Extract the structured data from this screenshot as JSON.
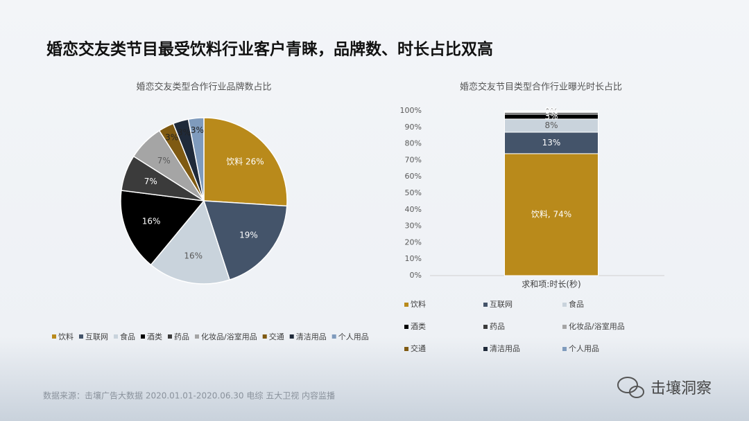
{
  "header": {
    "title": "婚恋交友类节目最受饮料行业客户青睐，品牌数、时长占比双高"
  },
  "footer": {
    "source": "数据来源：击壤广告大数据 2020.01.01-2020.06.30 电综 五大卫视 内容监播",
    "brand": "击壤洞察"
  },
  "chart_data": [
    {
      "type": "pie",
      "title": "婚恋交友类型合作行业品牌数占比",
      "categories": [
        "饮料",
        "互联网",
        "食品",
        "酒类",
        "药品",
        "化妆品/浴室用品",
        "交通",
        "清洁用品",
        "个人用品"
      ],
      "values": [
        26,
        19,
        16,
        16,
        7,
        7,
        3,
        3,
        3
      ],
      "value_labels": [
        "饮料 26%",
        "19%",
        "16%",
        "16%",
        "7%",
        "7%",
        "3%",
        "3%",
        "3%"
      ],
      "colors": [
        "#b98a1b",
        "#44546a",
        "#c9d3dc",
        "#000000",
        "#3b3b3b",
        "#a5a5a5",
        "#7f5a12",
        "#1f2a3a",
        "#7f9bbd"
      ],
      "legend": "bottom"
    },
    {
      "type": "stacked_bar",
      "title": "婚恋交友节目类型合作行业曝光时长占比",
      "categories": [
        "求和项:时长(秒)"
      ],
      "series": [
        {
          "name": "饮料",
          "color": "#b98a1b",
          "values": [
            74
          ],
          "value_labels": [
            "饮料, 74%"
          ]
        },
        {
          "name": "互联网",
          "color": "#44546a",
          "values": [
            13
          ],
          "value_labels": [
            "13%"
          ]
        },
        {
          "name": "食品",
          "color": "#c9d3dc",
          "values": [
            8
          ],
          "value_labels": [
            "8%"
          ]
        },
        {
          "name": "酒类",
          "color": "#000000",
          "values": [
            3
          ],
          "value_labels": [
            "3%"
          ]
        },
        {
          "name": "药品",
          "color": "#3b3b3b",
          "values": [
            1
          ],
          "value_labels": [
            "1%"
          ]
        },
        {
          "name": "化妆品/浴室用品",
          "color": "#a5a5a5",
          "values": [
            0.4
          ],
          "value_labels": [
            "0%"
          ]
        },
        {
          "name": "交通",
          "color": "#7f5a12",
          "values": [
            0.3
          ],
          "value_labels": [
            "0%"
          ]
        },
        {
          "name": "清洁用品",
          "color": "#1f2a3a",
          "values": [
            0.2
          ],
          "value_labels": [
            "0%"
          ]
        },
        {
          "name": "个人用品",
          "color": "#7f9bbd",
          "values": [
            0.1
          ],
          "value_labels": [
            "0%"
          ]
        }
      ],
      "ylim": [
        0,
        100
      ],
      "yticks": [
        {
          "value": 0,
          "label": "0%"
        },
        {
          "value": 10,
          "label": "10%"
        },
        {
          "value": 20,
          "label": "20%"
        },
        {
          "value": 30,
          "label": "30%"
        },
        {
          "value": 40,
          "label": "40%"
        },
        {
          "value": 50,
          "label": "50%"
        },
        {
          "value": 60,
          "label": "60%"
        },
        {
          "value": 70,
          "label": "70%"
        },
        {
          "value": 80,
          "label": "80%"
        },
        {
          "value": 90,
          "label": "90%"
        },
        {
          "value": 100,
          "label": "100%"
        }
      ],
      "grid": false,
      "legend": "bottom"
    }
  ]
}
